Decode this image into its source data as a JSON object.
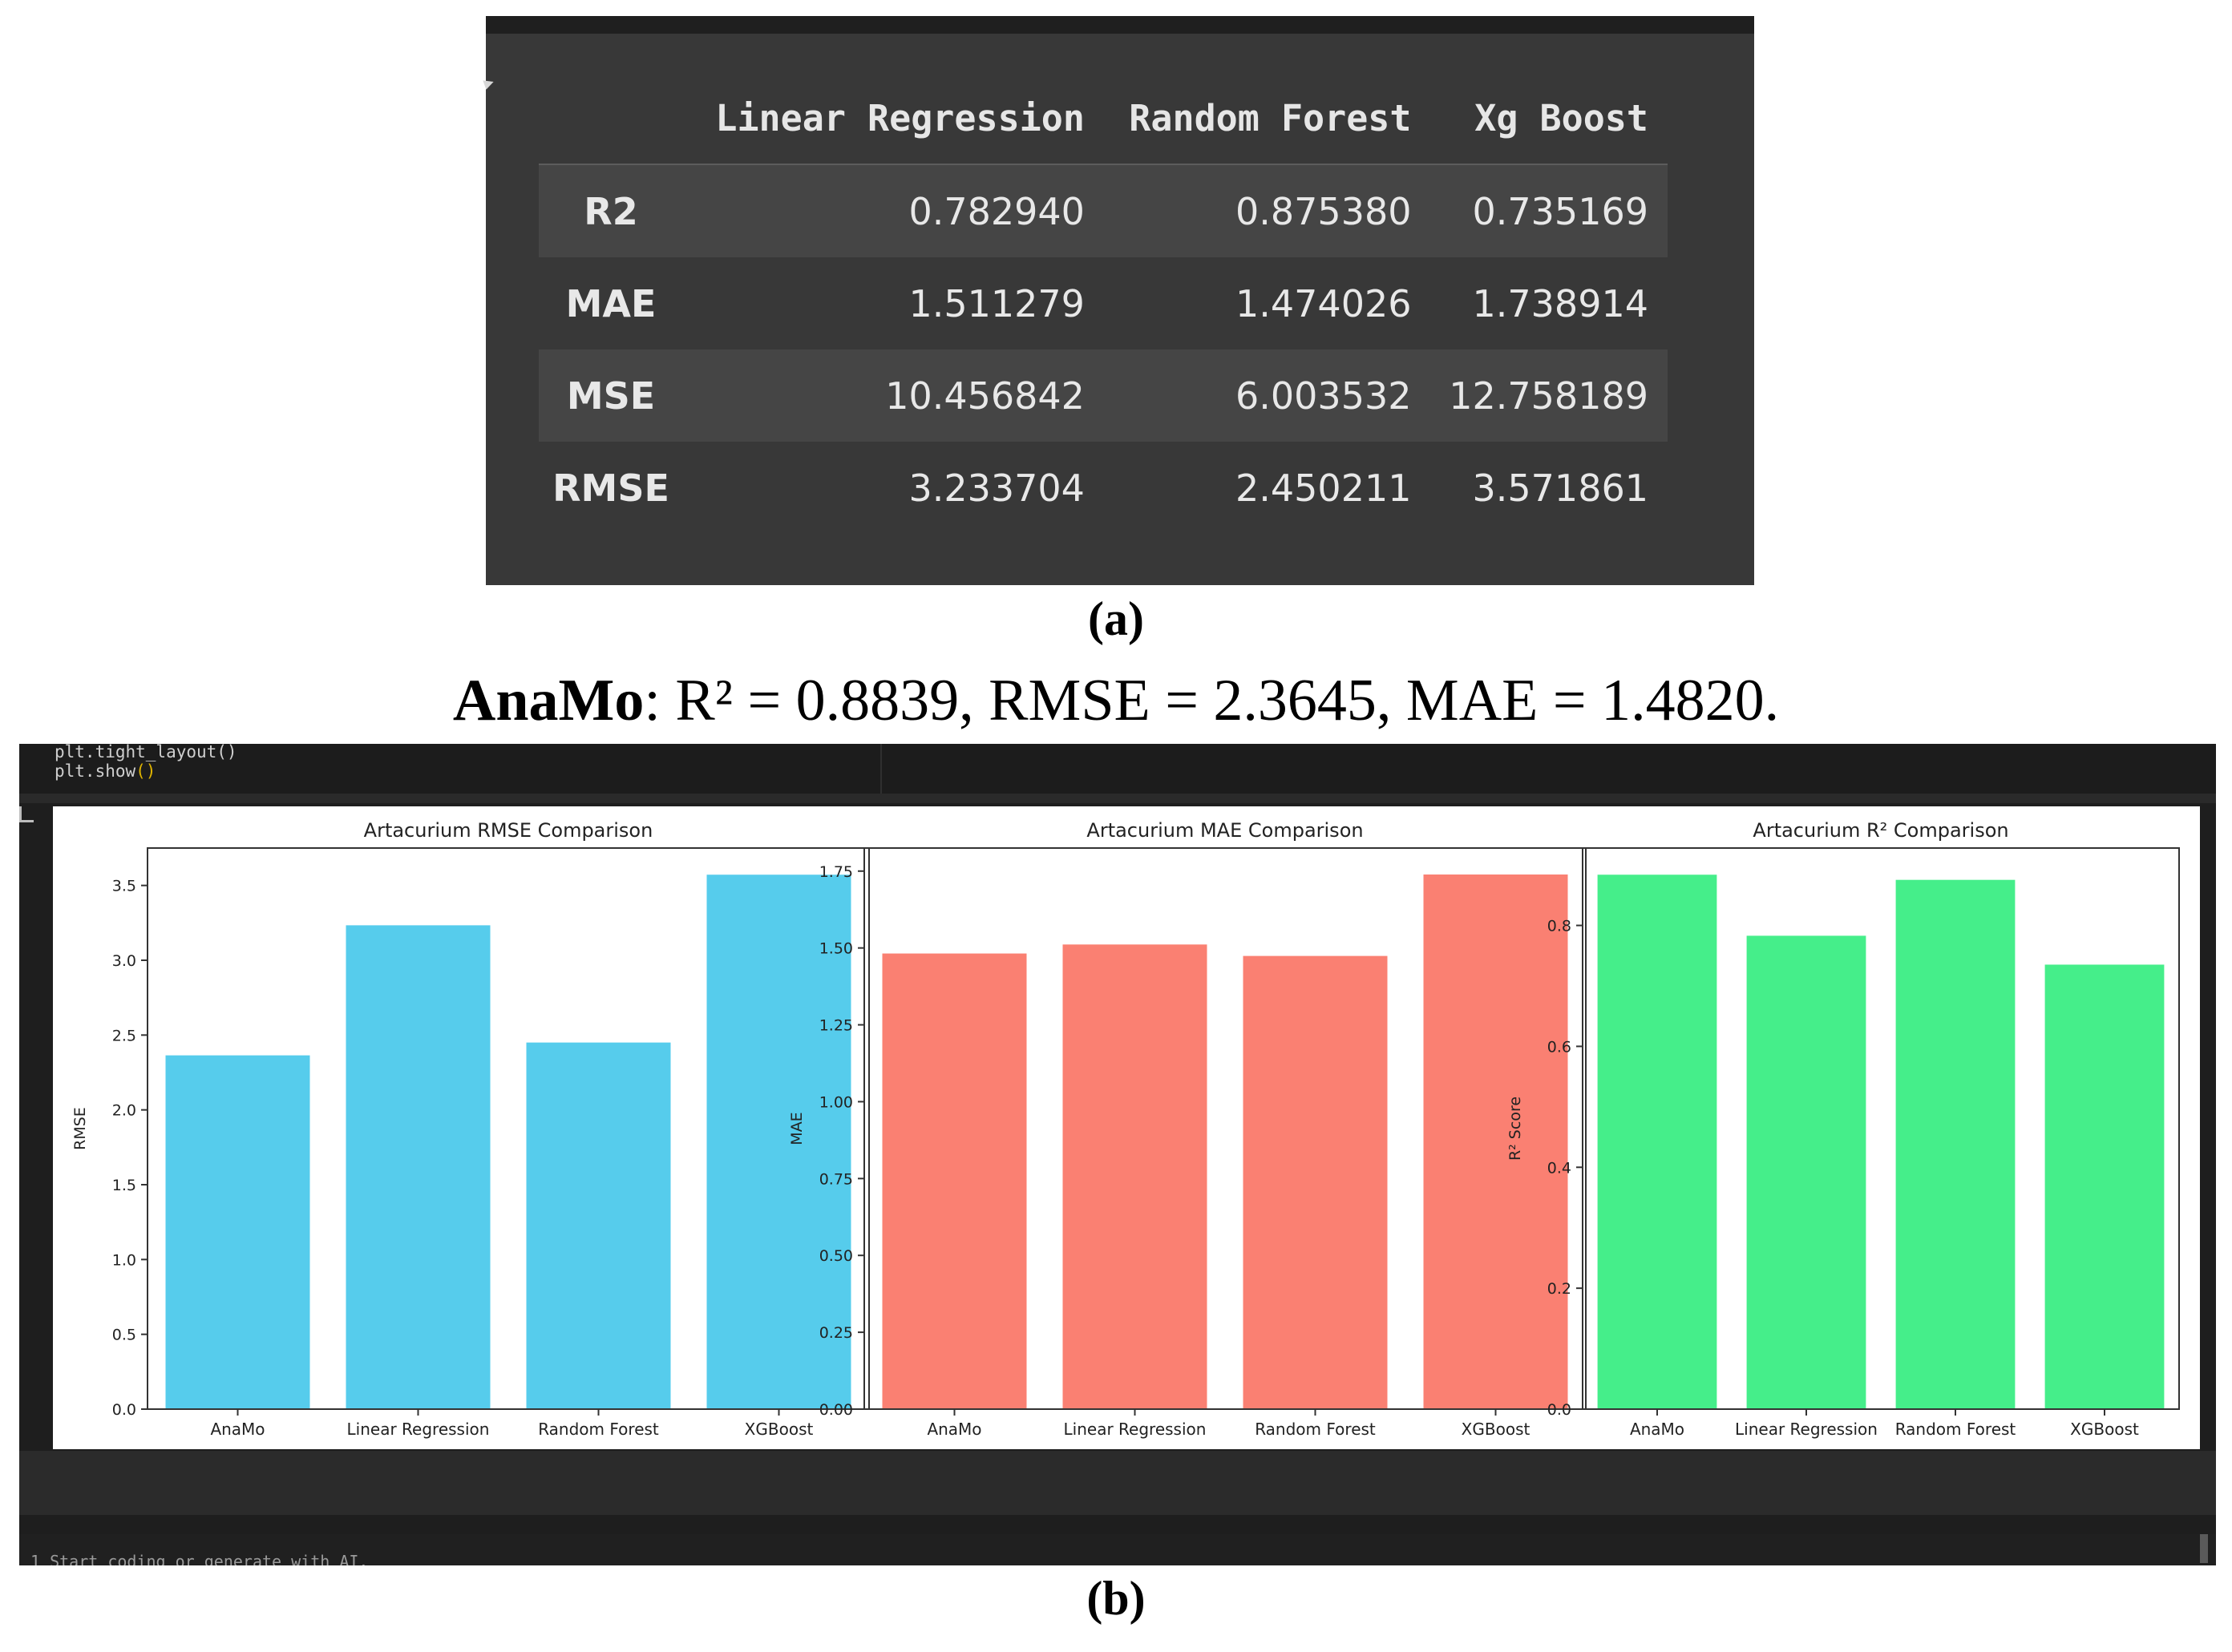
{
  "table": {
    "columns": [
      "Linear Regression",
      "Random Forest",
      "Xg Boost"
    ],
    "rows": [
      {
        "metric": "R2",
        "values": [
          "0.782940",
          "0.875380",
          "0.735169"
        ]
      },
      {
        "metric": "MAE",
        "values": [
          "1.511279",
          "1.474026",
          "1.738914"
        ]
      },
      {
        "metric": "MSE",
        "values": [
          "10.456842",
          "6.003532",
          "12.758189"
        ]
      },
      {
        "metric": "RMSE",
        "values": [
          "3.233704",
          "2.450211",
          "3.571861"
        ]
      }
    ]
  },
  "captions": {
    "a": "(a)",
    "b": "(b)"
  },
  "summary": {
    "model": "AnaMo",
    "text": ": R² = 0.8839, RMSE = 2.3645, MAE = 1.4820."
  },
  "notebook": {
    "code_line_1": "plt.tight_layout()",
    "code_line_2_fn": "plt.show",
    "code_line_2_paren": "()",
    "bottom_prompt": "1  Start coding or generate with AI."
  },
  "colors": {
    "rmse_bar": "#56CCEC",
    "mae_bar": "#FA8072",
    "r2_bar": "#45EE8A"
  },
  "chart_data": [
    {
      "type": "bar",
      "title": "Artacurium RMSE Comparison",
      "xlabel": "",
      "ylabel": "RMSE",
      "categories": [
        "AnaMo",
        "Linear Regression",
        "Random Forest",
        "XGBoost"
      ],
      "values": [
        2.3645,
        3.233704,
        2.450211,
        3.571861
      ],
      "ylim": [
        0,
        3.75
      ],
      "yticks": [
        0.0,
        0.5,
        1.0,
        1.5,
        2.0,
        2.5,
        3.0,
        3.5
      ],
      "ytick_labels": [
        "0.0",
        "0.5",
        "1.0",
        "1.5",
        "2.0",
        "2.5",
        "3.0",
        "3.5"
      ],
      "color": "#56CCEC",
      "grid": false
    },
    {
      "type": "bar",
      "title": "Artacurium MAE Comparison",
      "xlabel": "",
      "ylabel": "MAE",
      "categories": [
        "AnaMo",
        "Linear Regression",
        "Random Forest",
        "XGBoost"
      ],
      "values": [
        1.482,
        1.511279,
        1.474026,
        1.738914
      ],
      "ylim": [
        0,
        1.825
      ],
      "yticks": [
        0.0,
        0.25,
        0.5,
        0.75,
        1.0,
        1.25,
        1.5,
        1.75
      ],
      "ytick_labels": [
        "0.00",
        "0.25",
        "0.50",
        "0.75",
        "1.00",
        "1.25",
        "1.50",
        "1.75"
      ],
      "color": "#FA8072",
      "grid": false
    },
    {
      "type": "bar",
      "title": "Artacurium R² Comparison",
      "xlabel": "",
      "ylabel": "R² Score",
      "categories": [
        "AnaMo",
        "Linear Regression",
        "Random Forest",
        "XGBoost"
      ],
      "values": [
        0.8839,
        0.78294,
        0.87538,
        0.735169
      ],
      "ylim": [
        0,
        0.928
      ],
      "yticks": [
        0.0,
        0.2,
        0.4,
        0.6,
        0.8
      ],
      "ytick_labels": [
        "0.0",
        "0.2",
        "0.4",
        "0.6",
        "0.8"
      ],
      "color": "#45EE8A",
      "grid": false
    }
  ]
}
